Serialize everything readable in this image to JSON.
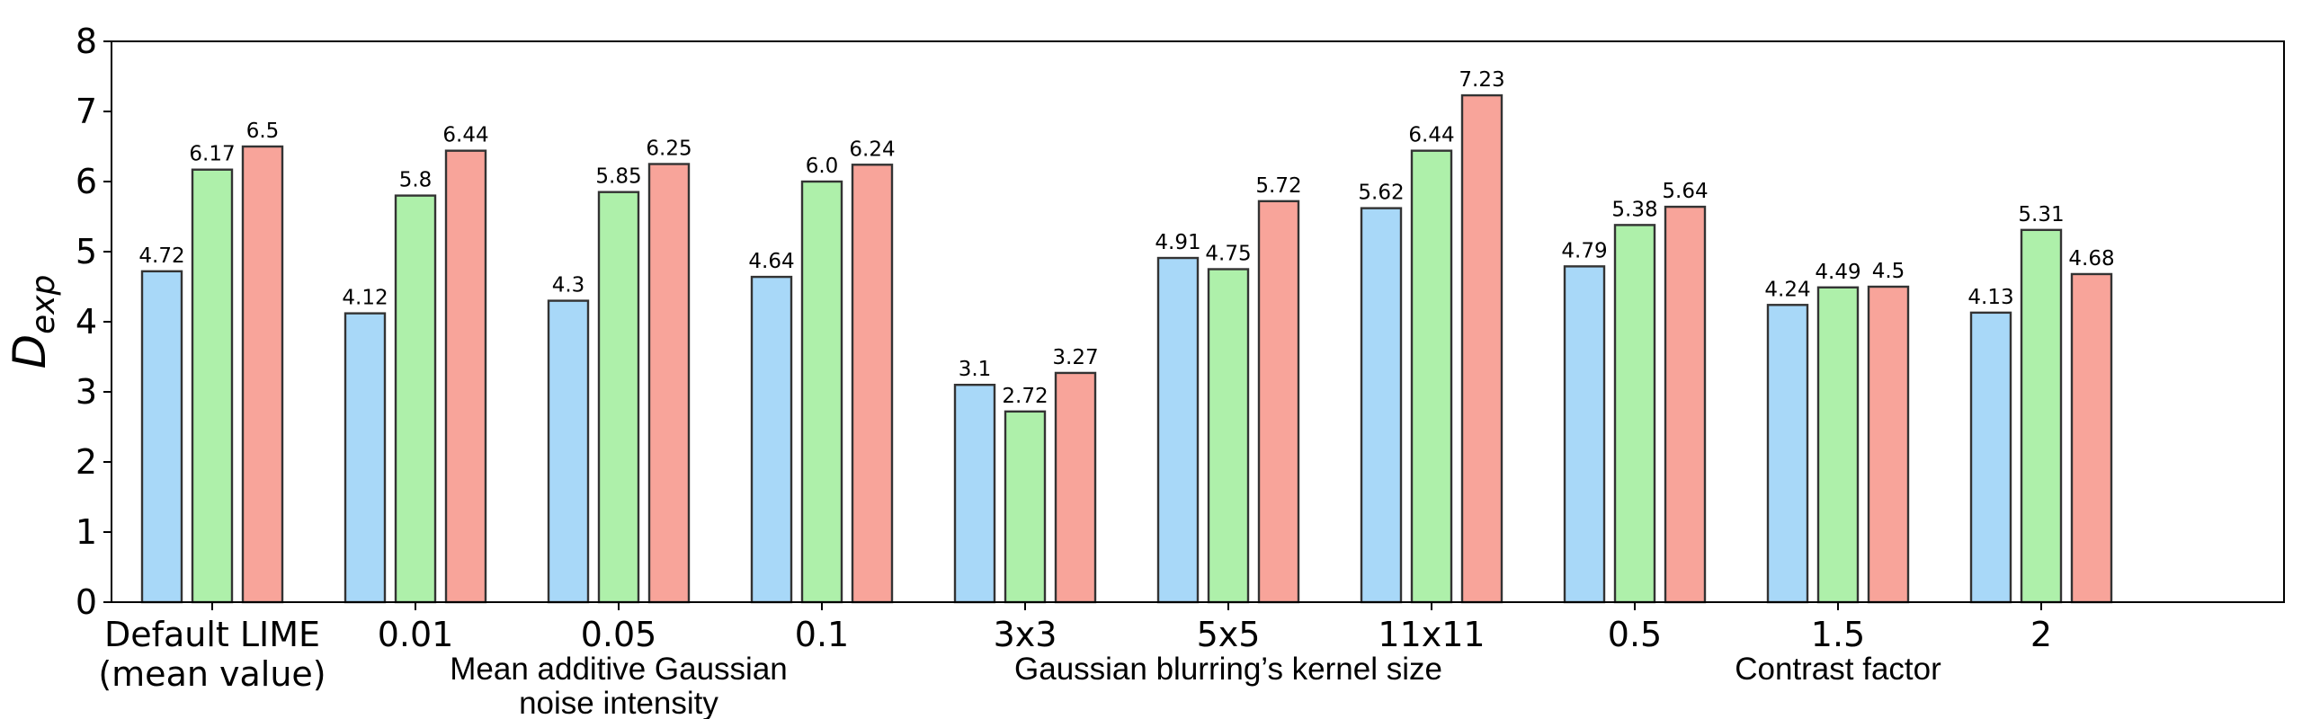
{
  "chart_data": {
    "type": "bar",
    "ylabel": "D",
    "ylabel_subscript": "exp",
    "xlabel": "",
    "ylim": [
      0,
      8
    ],
    "yticks": [
      0,
      1,
      2,
      3,
      4,
      5,
      6,
      7,
      8
    ],
    "grid": false,
    "legend": "none",
    "categories": [
      [
        "Default LIME",
        "(mean value)"
      ],
      [
        "0.01"
      ],
      [
        "0.05"
      ],
      [
        "0.1"
      ],
      [
        "3x3"
      ],
      [
        "5x5"
      ],
      [
        "11x11"
      ],
      [
        "0.5"
      ],
      [
        "1.5"
      ],
      [
        "2"
      ]
    ],
    "series": [
      {
        "color": "#a8d8f8",
        "values": [
          4.72,
          4.12,
          4.3,
          4.64,
          3.1,
          4.91,
          5.62,
          4.79,
          4.24,
          4.13
        ]
      },
      {
        "color": "#aef0aa",
        "values": [
          6.17,
          5.8,
          5.85,
          6.0,
          2.72,
          4.75,
          6.44,
          5.38,
          4.49,
          5.31
        ]
      },
      {
        "color": "#f8a49a",
        "values": [
          6.5,
          6.44,
          6.25,
          6.24,
          3.27,
          5.72,
          7.23,
          5.64,
          4.5,
          4.68
        ]
      }
    ],
    "value_labels": [
      [
        "4.72",
        "6.17",
        "6.5"
      ],
      [
        "4.12",
        "5.8",
        "6.44"
      ],
      [
        "4.3",
        "5.85",
        "6.25"
      ],
      [
        "4.64",
        "6.0",
        "6.24"
      ],
      [
        "3.1",
        "2.72",
        "3.27"
      ],
      [
        "4.91",
        "4.75",
        "5.72"
      ],
      [
        "5.62",
        "6.44",
        "7.23"
      ],
      [
        "4.79",
        "5.38",
        "5.64"
      ],
      [
        "4.24",
        "4.49",
        "4.5"
      ],
      [
        "4.13",
        "5.31",
        "4.68"
      ]
    ],
    "group_labels": [
      {
        "lines": [
          "Mean additive Gaussian",
          "noise intensity"
        ],
        "span": [
          1,
          3
        ]
      },
      {
        "lines": [
          "Gaussian blurring’s kernel size"
        ],
        "span": [
          4,
          6
        ]
      },
      {
        "lines": [
          "Contrast factor"
        ],
        "span": [
          7,
          9
        ]
      }
    ]
  }
}
